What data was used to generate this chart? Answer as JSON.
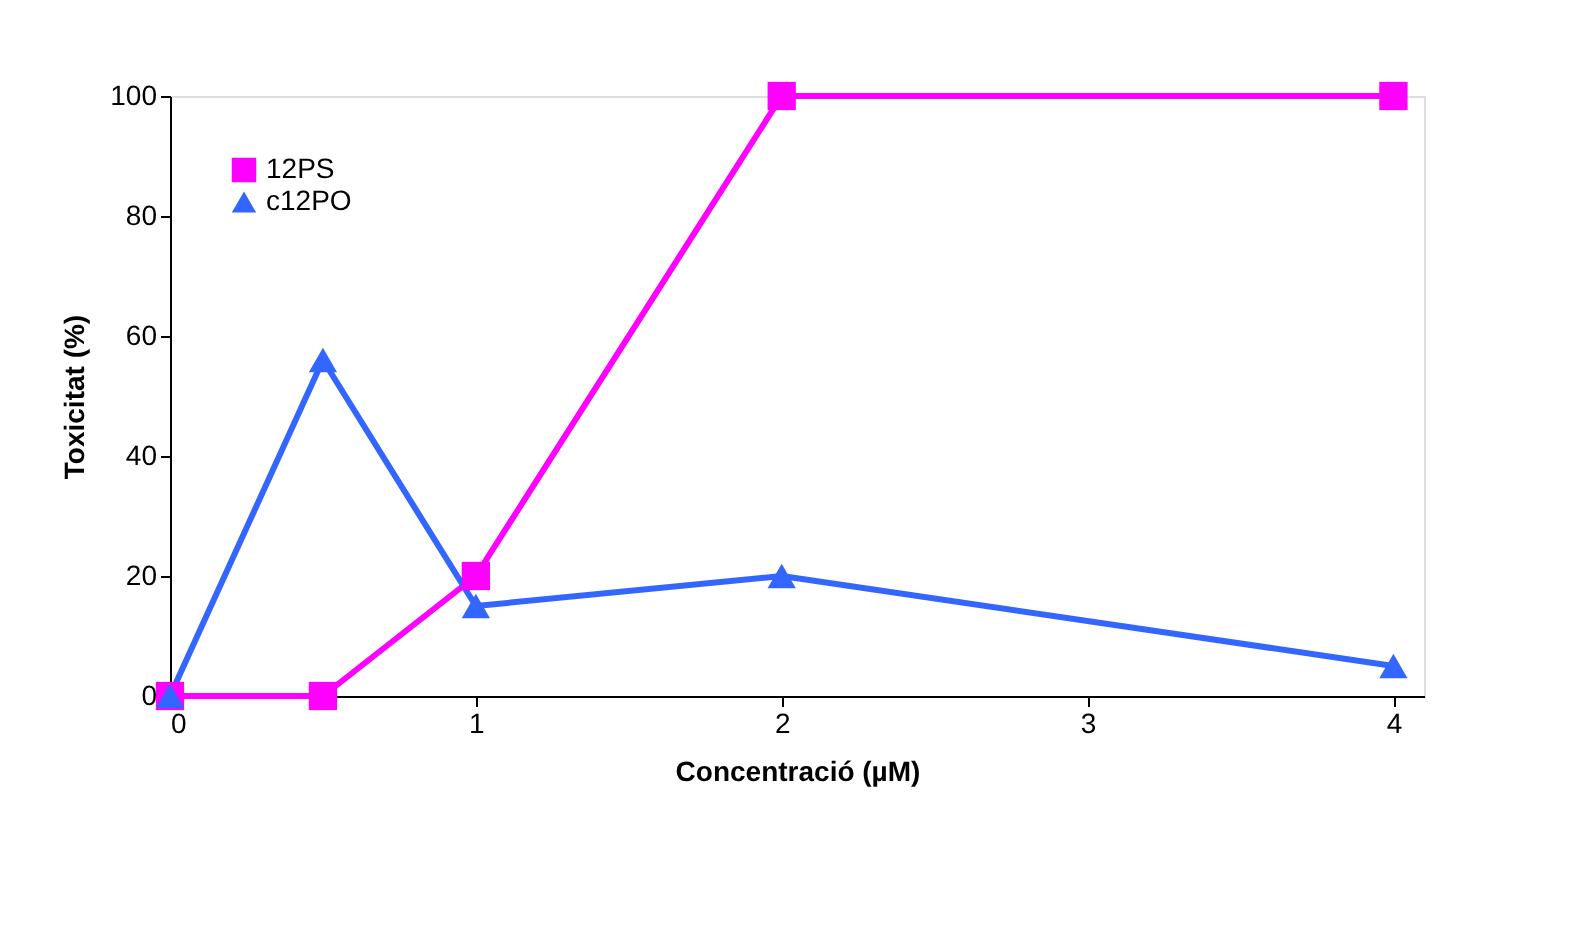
{
  "chart_data": {
    "type": "line",
    "xlabel": "Concentració (µM)",
    "ylabel": "Toxicitat (%)",
    "x": [
      0,
      0.5,
      1,
      2,
      4
    ],
    "series": [
      {
        "name": "12PS",
        "color": "#ff00ff",
        "marker": "square",
        "values": [
          0,
          0,
          20,
          100,
          100
        ]
      },
      {
        "name": "c12PO",
        "color": "#3366ff",
        "marker": "triangle",
        "values": [
          0,
          56,
          15,
          20,
          5
        ]
      }
    ],
    "xlim": [
      0,
      4.1
    ],
    "xticks": [
      0,
      1,
      2,
      3,
      4
    ],
    "ylim": [
      0,
      100
    ],
    "yticks": [
      0,
      20,
      40,
      60,
      80,
      100
    ],
    "grid": false,
    "legend": "top left",
    "line_style": "solid"
  }
}
